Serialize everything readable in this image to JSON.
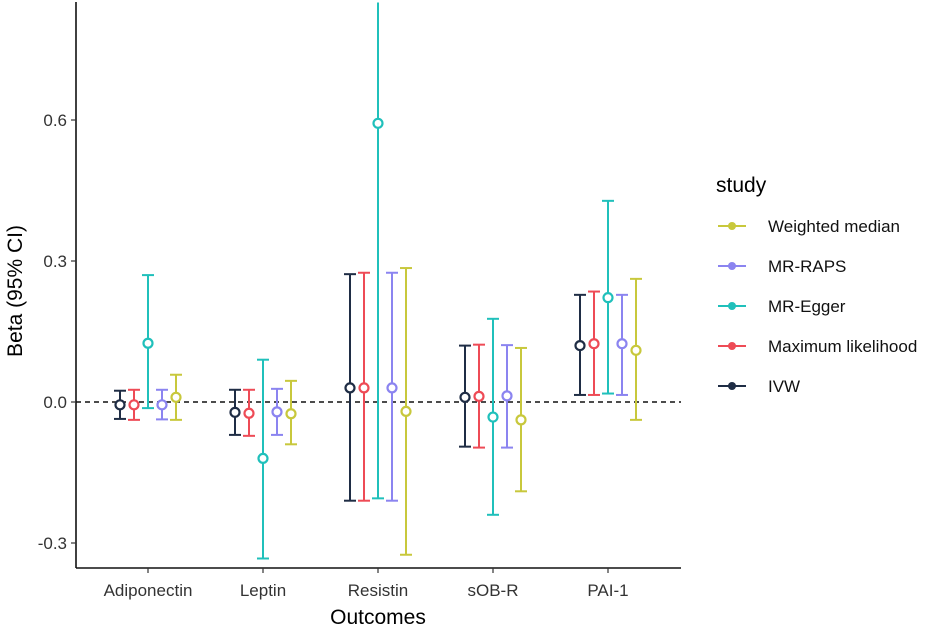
{
  "chart_data": {
    "type": "errorbar",
    "title": "",
    "xlabel": "Outcomes",
    "ylabel": "Beta (95% CI)",
    "ylim": [
      -0.36,
      0.85
    ],
    "yticks": [
      -0.3,
      0.0,
      0.3,
      0.6
    ],
    "ytick_labels": [
      "-0.3",
      "0.0",
      "0.3",
      "0.6"
    ],
    "reference_line": 0,
    "categories": [
      "Adiponectin",
      "Leptin",
      "Resistin",
      "sOB-R",
      "PAI-1"
    ],
    "legend": {
      "title": "study",
      "placement": "right",
      "order": [
        "Weighted median",
        "MR-RAPS",
        "MR-Egger",
        "Maximum likelihood",
        "IVW"
      ]
    },
    "series": [
      {
        "name": "IVW",
        "color": "#1f2d45",
        "values": [
          -0.006,
          -0.022,
          0.03,
          0.01,
          0.12
        ],
        "lower": [
          -0.036,
          -0.07,
          -0.21,
          -0.095,
          0.015
        ],
        "upper": [
          0.024,
          0.026,
          0.272,
          0.12,
          0.228
        ]
      },
      {
        "name": "Maximum likelihood",
        "color": "#ee4b56",
        "values": [
          -0.006,
          -0.024,
          0.03,
          0.012,
          0.124
        ],
        "lower": [
          -0.038,
          -0.072,
          -0.21,
          -0.097,
          0.015
        ],
        "upper": [
          0.026,
          0.026,
          0.275,
          0.122,
          0.235
        ]
      },
      {
        "name": "MR-RAPS",
        "color": "#8b84f0",
        "values": [
          -0.006,
          -0.021,
          0.03,
          0.013,
          0.124
        ],
        "lower": [
          -0.037,
          -0.07,
          -0.21,
          -0.097,
          0.015
        ],
        "upper": [
          0.026,
          0.028,
          0.275,
          0.121,
          0.228
        ]
      },
      {
        "name": "MR-Egger",
        "color": "#20c0bb",
        "values": [
          0.125,
          -0.12,
          0.593,
          -0.032,
          0.222
        ],
        "lower": [
          -0.013,
          -0.333,
          -0.205,
          -0.24,
          0.018
        ],
        "upper": [
          0.27,
          0.09,
          0.85,
          0.177,
          0.428
        ]
      },
      {
        "name": "Weighted median",
        "color": "#c8c83c",
        "values": [
          0.01,
          -0.025,
          -0.02,
          -0.038,
          0.11
        ],
        "lower": [
          -0.038,
          -0.09,
          -0.325,
          -0.19,
          -0.038
        ],
        "upper": [
          0.058,
          0.045,
          0.285,
          0.115,
          0.262
        ]
      }
    ],
    "dodge_order": [
      "IVW",
      "Maximum likelihood",
      "MR-Egger",
      "MR-RAPS",
      "Weighted median"
    ]
  }
}
